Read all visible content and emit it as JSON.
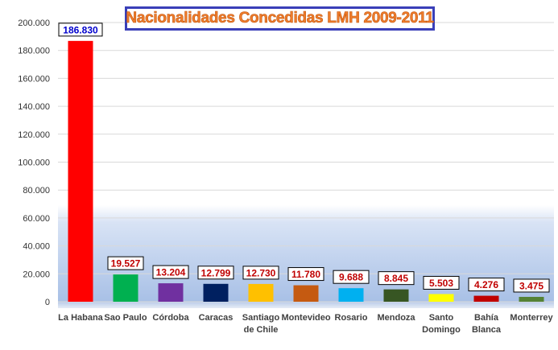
{
  "chart_data": {
    "type": "bar",
    "title": "Nacionalidades Concedidas LMH 2009-2011",
    "categories": [
      [
        "La Habana"
      ],
      [
        "Sao Paulo"
      ],
      [
        "Córdoba"
      ],
      [
        "Caracas"
      ],
      [
        "Santiago",
        "de Chile"
      ],
      [
        "Montevideo"
      ],
      [
        "Rosario"
      ],
      [
        "Mendoza"
      ],
      [
        "Santo",
        "Domingo"
      ],
      [
        "Bahía",
        "Blanca"
      ],
      [
        "Monterrey"
      ]
    ],
    "values": [
      186830,
      19527,
      13204,
      12799,
      12730,
      11780,
      9688,
      8845,
      5503,
      4276,
      3475
    ],
    "data_labels": [
      "186.830",
      "19.527",
      "13.204",
      "12.799",
      "12.730",
      "11.780",
      "9.688",
      "8.845",
      "5.503",
      "4.276",
      "3.475"
    ],
    "bar_colors": [
      "#ff0000",
      "#00b050",
      "#7030a0",
      "#002060",
      "#ffc000",
      "#c55a11",
      "#00b0f0",
      "#375623",
      "#ffff00",
      "#c00000",
      "#548235"
    ],
    "label_colors": [
      "#0000cc",
      "#c00000",
      "#c00000",
      "#c00000",
      "#c00000",
      "#c00000",
      "#c00000",
      "#c00000",
      "#c00000",
      "#c00000",
      "#c00000"
    ],
    "ylim": [
      0,
      200000
    ],
    "yticks": [
      0,
      20000,
      40000,
      60000,
      80000,
      100000,
      120000,
      140000,
      160000,
      180000,
      200000
    ],
    "ytick_labels": [
      "0",
      "20.000",
      "40.000",
      "60.000",
      "80.000",
      "100.000",
      "120.000",
      "140.000",
      "160.000",
      "180.000",
      "200.000"
    ],
    "xlabel": "",
    "ylabel": "",
    "grid": true,
    "legend": false
  }
}
